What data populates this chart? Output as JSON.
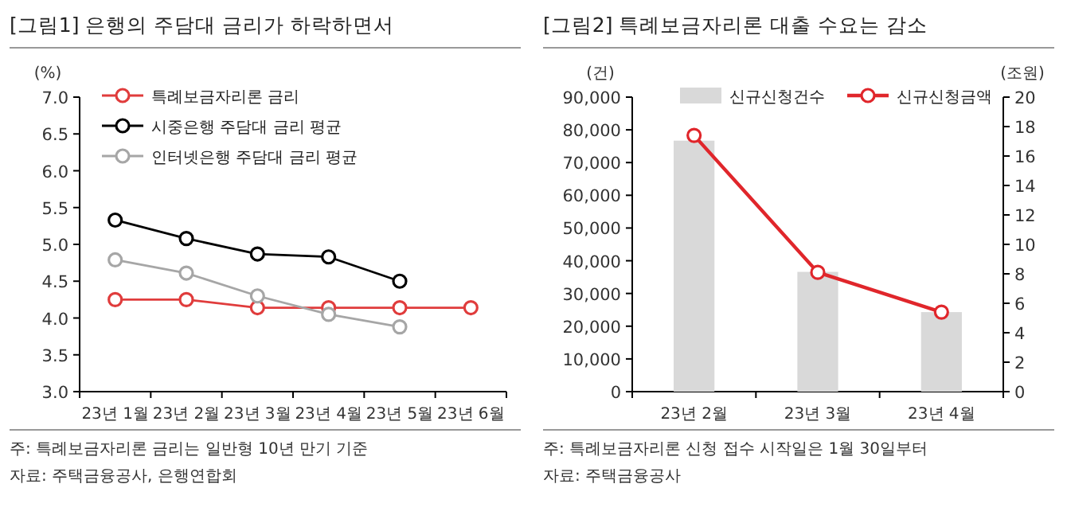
{
  "chart_data": [
    {
      "type": "line",
      "title": "[그림1]    은행의 주담대 금리가 하락하면서",
      "ylabel": "(%)",
      "categories": [
        "23년 1월",
        "23년 2월",
        "23년 3월",
        "23년 4월",
        "23년 5월",
        "23년 6월"
      ],
      "series": [
        {
          "name": "특례보금자리론 금리",
          "color": "#e03c3c",
          "values": [
            4.25,
            4.25,
            4.14,
            4.14,
            4.14,
            4.14
          ]
        },
        {
          "name": "시중은행 주담대 금리 평균",
          "color": "#000000",
          "values": [
            5.33,
            5.08,
            4.87,
            4.83,
            4.5,
            null
          ]
        },
        {
          "name": "인터넷은행 주담대 금리 평균",
          "color": "#a6a6a6",
          "values": [
            4.79,
            4.61,
            4.3,
            4.05,
            3.88,
            null
          ]
        }
      ],
      "ylim": [
        3.0,
        7.0
      ],
      "yticks": [
        {
          "value": 3,
          "label": "3.0"
        },
        {
          "value": 3.5,
          "label": "3.5"
        },
        {
          "value": 4,
          "label": "4.0"
        },
        {
          "value": 4.5,
          "label": "4.5"
        },
        {
          "value": 5,
          "label": "5.0"
        },
        {
          "value": 5.5,
          "label": "5.5"
        },
        {
          "value": 6,
          "label": "6.0"
        },
        {
          "value": 6.5,
          "label": "6.5"
        },
        {
          "value": 7,
          "label": "7.0"
        }
      ],
      "marker": "circle",
      "legend": "top left",
      "grid": false,
      "annotations": [
        "주: 특례보금자리론 금리는 일반형 10년 만기 기준",
        "자료: 주택금융공사, 은행연합회"
      ]
    },
    {
      "type": "bar",
      "title": "[그림2]    특례보금자리론 대출 수요는 감소",
      "ylabel": "(건)",
      "y2label": "(조원)",
      "categories": [
        "23년 2월",
        "23년 3월",
        "23년 4월"
      ],
      "series": [
        {
          "name": "신규신청건수",
          "color": "#d9d9d9",
          "values": [
            76700,
            36600,
            24300
          ]
        },
        {
          "name": "신규신청금액",
          "type": "line",
          "axis": "y2",
          "color": "#e0262b",
          "values": [
            17.4,
            8.1,
            5.4
          ]
        }
      ],
      "ylim": [
        0,
        90000
      ],
      "yticks": [
        {
          "value": 0,
          "label": "0"
        },
        {
          "value": 10000,
          "label": "10,000"
        },
        {
          "value": 20000,
          "label": "20,000"
        },
        {
          "value": 30000,
          "label": "30,000"
        },
        {
          "value": 40000,
          "label": "40,000"
        },
        {
          "value": 50000,
          "label": "50,000"
        },
        {
          "value": 60000,
          "label": "60,000"
        },
        {
          "value": 70000,
          "label": "70,000"
        },
        {
          "value": 80000,
          "label": "80,000"
        },
        {
          "value": 90000,
          "label": "90,000"
        }
      ],
      "y2lim": [
        0,
        20
      ],
      "y2ticks": [
        0,
        2,
        4,
        6,
        8,
        10,
        12,
        14,
        16,
        18,
        20
      ],
      "marker": "circle",
      "legend": "top",
      "grid": false,
      "annotations": [
        "주: 특례보금자리론 신청 접수 시작일은 1월 30일부터",
        "자료: 주택금융공사"
      ]
    }
  ]
}
